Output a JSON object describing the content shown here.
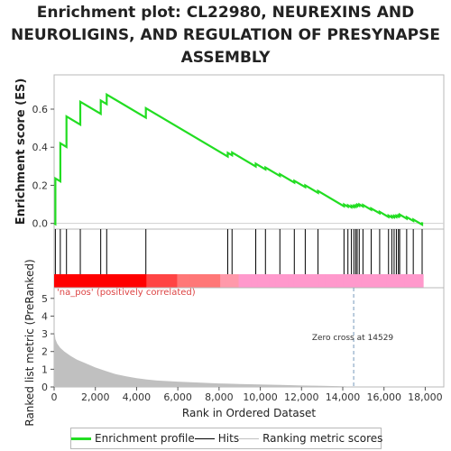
{
  "title_lines": [
    "Enrichment plot: CL22980, NEUREXINS AND",
    "NEUROLIGINS, AND REGULATION OF PRESYNAPSE",
    "ASSEMBLY"
  ],
  "colors": {
    "enrichment_line": "#22dd22",
    "hits": "#000000",
    "ranking_fill": "#c0c0c0",
    "positive_band": "#ff0000",
    "negative_band": "#ff99cc",
    "zero_line": "#7799bb",
    "na_pos_text": "#dd4444"
  },
  "chart_data": {
    "type": "line",
    "x_label": "Rank in Ordered Dataset",
    "x_range": [
      0,
      18900
    ],
    "x_ticks": [
      0,
      2000,
      4000,
      6000,
      8000,
      10000,
      12000,
      14000,
      16000,
      18000
    ],
    "x_tick_labels": [
      "0",
      "2,000",
      "4,000",
      "6,000",
      "8,000",
      "10,000",
      "12,000",
      "14,000",
      "16,000",
      "18,000"
    ],
    "es_panel": {
      "y_label": "Enrichment score (ES)",
      "y_range": [
        -0.03,
        0.78
      ],
      "y_ticks": [
        0.0,
        0.2,
        0.4,
        0.6
      ],
      "y_tick_labels": [
        "0.0",
        "0.2",
        "0.4",
        "0.6"
      ],
      "series_name": "Enrichment profile",
      "hits": [
        60,
        300,
        600,
        1270,
        2260,
        2550,
        4450,
        8420,
        8630,
        9780,
        10250,
        10950,
        11650,
        12180,
        12800,
        14060,
        14250,
        14420,
        14540,
        14630,
        14700,
        14800,
        14980,
        15380,
        15790,
        16220,
        16380,
        16490,
        16600,
        16700,
        16760,
        17100,
        17420,
        17850
      ]
    },
    "ranking_panel": {
      "y_label": "Ranked list metric (PreRanked)",
      "y_range": [
        0,
        5.6
      ],
      "y_ticks": [
        0,
        1,
        2,
        3,
        4,
        5
      ],
      "y_tick_labels": [
        "0",
        "1",
        "2",
        "3",
        "4",
        "5"
      ],
      "series_name": "Ranking metric scores",
      "metric_curve": [
        [
          0,
          3.3
        ],
        [
          60,
          2.7
        ],
        [
          150,
          2.45
        ],
        [
          300,
          2.2
        ],
        [
          500,
          2.0
        ],
        [
          800,
          1.75
        ],
        [
          1100,
          1.55
        ],
        [
          1500,
          1.35
        ],
        [
          2000,
          1.1
        ],
        [
          2500,
          0.9
        ],
        [
          3000,
          0.72
        ],
        [
          3500,
          0.6
        ],
        [
          4000,
          0.5
        ],
        [
          4500,
          0.42
        ],
        [
          5000,
          0.36
        ],
        [
          6000,
          0.3
        ],
        [
          7000,
          0.25
        ],
        [
          8000,
          0.2
        ],
        [
          9000,
          0.17
        ],
        [
          10000,
          0.14
        ],
        [
          11000,
          0.11
        ],
        [
          12000,
          0.08
        ],
        [
          13000,
          0.06
        ],
        [
          14000,
          0.04
        ],
        [
          14529,
          0.0
        ],
        [
          15000,
          -0.02
        ],
        [
          16000,
          -0.05
        ],
        [
          17000,
          -0.07
        ],
        [
          17900,
          -0.1
        ]
      ],
      "positive_label": "'na_pos' (positively correlated)",
      "zero_cross_label": "Zero cross at 14529",
      "zero_cross_rank": 14529
    },
    "legend_entries": [
      "Enrichment profile",
      "Hits",
      "Ranking metric scores"
    ],
    "legend_placement": "bottom",
    "grid": false
  }
}
